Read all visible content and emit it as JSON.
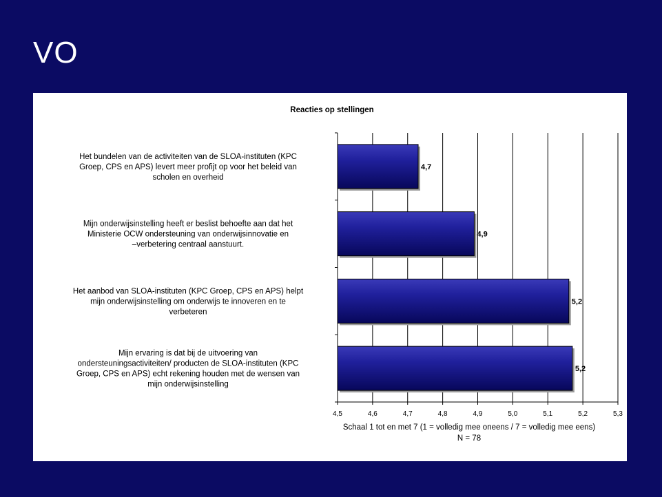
{
  "slide": {
    "title": "VO"
  },
  "chart_data": {
    "type": "bar",
    "orientation": "horizontal",
    "title": "Reacties op stellingen",
    "categories": [
      [
        "Het bundelen van de activiteiten van de SLOA-instituten (KPC",
        "Groep, CPS en APS) levert meer profijt op voor het beleid van",
        "scholen en overheid"
      ],
      [
        "Mijn onderwijsinstelling heeft er beslist behoefte aan dat het",
        "Ministerie OCW ondersteuning van onderwijsinnovatie en",
        "–verbetering centraal aanstuurt."
      ],
      [
        "Het aanbod van SLOA-instituten (KPC Groep, CPS en APS) helpt",
        "mijn onderwijsinstelling om onderwijs te innoveren en te",
        "verbeteren"
      ],
      [
        "Mijn ervaring is dat bij de uitvoering van",
        "ondersteuningsactiviteiten/ producten de SLOA-instituten (KPC",
        "Groep, CPS en APS) echt rekening houden met de wensen van",
        "mijn onderwijsinstelling"
      ]
    ],
    "values": [
      4.73,
      4.89,
      5.16,
      5.17
    ],
    "value_labels": [
      "4,7",
      "4,9",
      "5,2",
      "5,2"
    ],
    "xlim": [
      4.5,
      5.3
    ],
    "ticks": [
      "4,5",
      "4,6",
      "4,7",
      "4,8",
      "4,9",
      "5,0",
      "5,1",
      "5,2",
      "5,3"
    ],
    "xlabel": [
      "Schaal 1 tot en met 7 (1 = volledig mee oneens / 7 = volledig mee eens)",
      "N = 78"
    ],
    "grid": "vertical",
    "bar_color": "#16168f"
  }
}
